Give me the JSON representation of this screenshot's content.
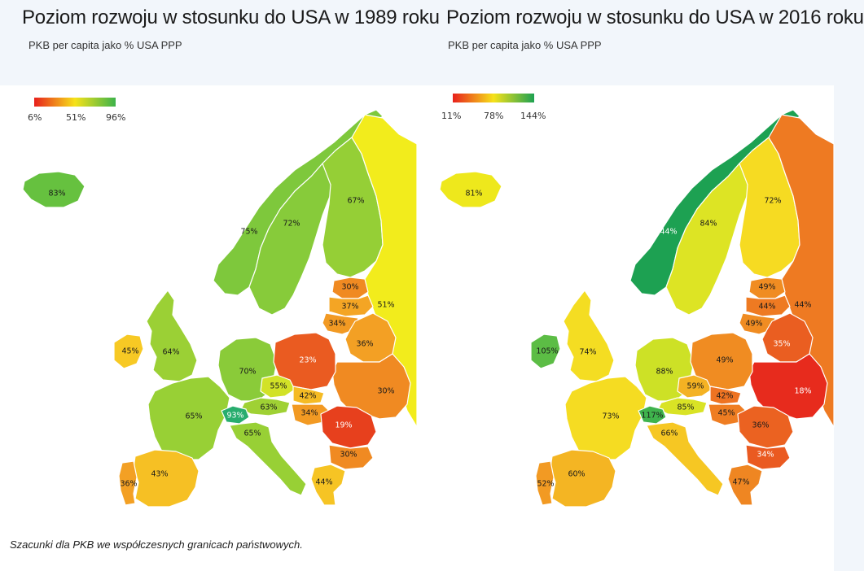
{
  "panels": [
    {
      "title": "Poziom rozwoju w stosunku do USA w 1989 roku",
      "subtitle": "PKB per capita jako % USA PPP",
      "legend": {
        "min_label": "6%",
        "mid_label": "51%",
        "max_label": "96%",
        "colors": [
          "#e8201c",
          "#f6e21a",
          "#3db34a"
        ]
      },
      "countries": [
        {
          "name": "Iceland",
          "label": "83%",
          "color": "#66c13f"
        },
        {
          "name": "Norway",
          "label": "75%",
          "color": "#7ec83c"
        },
        {
          "name": "Sweden",
          "label": "72%",
          "color": "#87cb3a"
        },
        {
          "name": "Finland",
          "label": "67%",
          "color": "#95cf36"
        },
        {
          "name": "Russia",
          "label": "51%",
          "color": "#f2ec1c"
        },
        {
          "name": "Estonia",
          "label": "30%",
          "color": "#f08a22"
        },
        {
          "name": "Latvia",
          "label": "37%",
          "color": "#f4a524"
        },
        {
          "name": "Lithuania",
          "label": "34%",
          "color": "#f29a23"
        },
        {
          "name": "Belarus",
          "label": "36%",
          "color": "#f3a024"
        },
        {
          "name": "Ukraine",
          "label": "30%",
          "color": "#f08a22"
        },
        {
          "name": "Ireland",
          "label": "45%",
          "color": "#f7c924"
        },
        {
          "name": "United Kingdom",
          "label": "64%",
          "color": "#9bd035"
        },
        {
          "name": "Germany",
          "label": "70%",
          "color": "#8acb39"
        },
        {
          "name": "Poland",
          "label": "23%",
          "color": "#ea5b21"
        },
        {
          "name": "Czechia",
          "label": "55%",
          "color": "#d2e227"
        },
        {
          "name": "Slovakia",
          "label": "42%",
          "color": "#f5bb24"
        },
        {
          "name": "Austria",
          "label": "63%",
          "color": "#9fd134"
        },
        {
          "name": "Hungary",
          "label": "34%",
          "color": "#f29a23"
        },
        {
          "name": "France",
          "label": "65%",
          "color": "#98d035"
        },
        {
          "name": "Switzerland",
          "label": "93%",
          "color": "#28ad6e"
        },
        {
          "name": "Italy",
          "label": "65%",
          "color": "#98d035"
        },
        {
          "name": "Romania",
          "label": "19%",
          "color": "#e7401d"
        },
        {
          "name": "Bulgaria",
          "label": "30%",
          "color": "#f08a22"
        },
        {
          "name": "Greece",
          "label": "44%",
          "color": "#f6c424"
        },
        {
          "name": "Spain",
          "label": "43%",
          "color": "#f6c024"
        },
        {
          "name": "Portugal",
          "label": "36%",
          "color": "#f3a024"
        }
      ]
    },
    {
      "title": "Poziom rozwoju w stosunku do USA w 2016 roku",
      "subtitle": "PKB per capita jako % USA PPP",
      "legend": {
        "min_label": "11%",
        "mid_label": "78%",
        "max_label": "144%",
        "colors": [
          "#e8201c",
          "#f6e21a",
          "#1da152"
        ]
      },
      "countries": [
        {
          "name": "Iceland",
          "label": "81%",
          "color": "#eee81c"
        },
        {
          "name": "Norway",
          "label": "144%",
          "color": "#1da152"
        },
        {
          "name": "Sweden",
          "label": "84%",
          "color": "#dde424"
        },
        {
          "name": "Finland",
          "label": "72%",
          "color": "#f6db22"
        },
        {
          "name": "Russia",
          "label": "44%",
          "color": "#ee7a22"
        },
        {
          "name": "Estonia",
          "label": "49%",
          "color": "#f08c22"
        },
        {
          "name": "Latvia",
          "label": "44%",
          "color": "#ee7a22"
        },
        {
          "name": "Lithuania",
          "label": "49%",
          "color": "#f08c22"
        },
        {
          "name": "Belarus",
          "label": "35%",
          "color": "#ea5e21"
        },
        {
          "name": "Ukraine",
          "label": "18%",
          "color": "#e72b1d"
        },
        {
          "name": "Ireland",
          "label": "105%",
          "color": "#5cbd45"
        },
        {
          "name": "United Kingdom",
          "label": "74%",
          "color": "#f4dd22"
        },
        {
          "name": "Germany",
          "label": "88%",
          "color": "#cde126"
        },
        {
          "name": "Poland",
          "label": "49%",
          "color": "#f08c22"
        },
        {
          "name": "Czechia",
          "label": "59%",
          "color": "#f4b223"
        },
        {
          "name": "Slovakia",
          "label": "42%",
          "color": "#ee7322"
        },
        {
          "name": "Austria",
          "label": "85%",
          "color": "#d9e325"
        },
        {
          "name": "Hungary",
          "label": "45%",
          "color": "#ef7d22"
        },
        {
          "name": "France",
          "label": "73%",
          "color": "#f5dc22"
        },
        {
          "name": "Switzerland",
          "label": "117%",
          "color": "#3fb34d"
        },
        {
          "name": "Italy",
          "label": "66%",
          "color": "#f6c723"
        },
        {
          "name": "Romania",
          "label": "36%",
          "color": "#eb6221"
        },
        {
          "name": "Bulgaria",
          "label": "34%",
          "color": "#ea5a21"
        },
        {
          "name": "Greece",
          "label": "47%",
          "color": "#ef8622"
        },
        {
          "name": "Spain",
          "label": "60%",
          "color": "#f4b523"
        },
        {
          "name": "Portugal",
          "label": "52%",
          "color": "#f29a23"
        }
      ]
    }
  ],
  "footnote": "Szacunki dla PKB we współczesnych granicach państwowych."
}
